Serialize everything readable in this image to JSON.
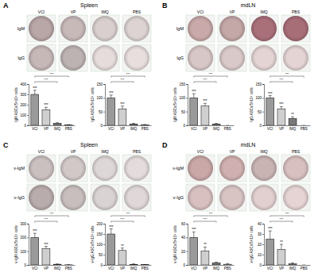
{
  "chart_data": [
    {
      "type": "bar",
      "panel": "A",
      "title": "Spleen",
      "wells": {
        "columns": [
          "VCI",
          "VP",
          "IMQ",
          "PBS"
        ],
        "rows": [
          "IgM",
          "IgG"
        ],
        "colors": [
          [
            "#b9a6a6",
            "#c8b9b9",
            "#d9cfcf",
            "#ddd3d3"
          ],
          [
            "#c7b8b8",
            "#bdb3b3",
            "#e6dcdc",
            "#e8dede"
          ]
        ]
      },
      "charts": [
        {
          "ylabel": "IgM ASCs/5×10⁵ cells",
          "categories": [
            "VCI",
            "VP",
            "IMQ",
            "PBS"
          ],
          "values": [
            300,
            150,
            20,
            5
          ],
          "errors": [
            40,
            25,
            5,
            2
          ],
          "ylim": [
            0,
            400
          ],
          "yticks": [
            0,
            100,
            200,
            300,
            400
          ],
          "colors": [
            "#9a9a9a",
            "#cfcfcf",
            "#7a7a7a",
            "#ffffff"
          ],
          "labels": [
            "***",
            "***",
            null,
            null
          ],
          "comparisons": [
            {
              "from": 0,
              "to": 2,
              "label": "***"
            },
            {
              "from": 0,
              "to": 3,
              "label": "***"
            }
          ]
        },
        {
          "ylabel": "IgG ASCs/5×10⁵ cells",
          "categories": [
            "VCI",
            "VP",
            "IMQ",
            "PBS"
          ],
          "values": [
            100,
            60,
            5,
            2
          ],
          "errors": [
            10,
            10,
            2,
            1
          ],
          "ylim": [
            0,
            150
          ],
          "yticks": [
            0,
            50,
            100,
            150
          ],
          "colors": [
            "#9a9a9a",
            "#cfcfcf",
            "#7a7a7a",
            "#ffffff"
          ],
          "labels": [
            "***",
            "***",
            null,
            null
          ],
          "comparisons": [
            {
              "from": 0,
              "to": 2,
              "label": "***"
            },
            {
              "from": 0,
              "to": 3,
              "label": "***"
            }
          ]
        }
      ]
    },
    {
      "type": "bar",
      "panel": "B",
      "title": "mdLN",
      "wells": {
        "columns": [
          "VCI",
          "VP",
          "IMQ",
          "PBS"
        ],
        "rows": [
          "IgM",
          "IgG"
        ],
        "colors": [
          [
            "#c9a9a9",
            "#c4a8a8",
            "#a9707a",
            "#a86e78"
          ],
          [
            "#d8c7c7",
            "#dac9c9",
            "#e4d4d4",
            "#e4d4d4"
          ]
        ]
      },
      "charts": [
        {
          "ylabel": "IgM ASCs/5×10⁵ cells",
          "categories": [
            "VCI",
            "VP",
            "IMQ",
            "PBS"
          ],
          "values": [
            100,
            70,
            5,
            0
          ],
          "errors": [
            15,
            10,
            2,
            0
          ],
          "ylim": [
            0,
            150
          ],
          "yticks": [
            0,
            50,
            100,
            150
          ],
          "colors": [
            "#9a9a9a",
            "#cfcfcf",
            "#7a7a7a",
            "#ffffff"
          ],
          "labels": [
            "***",
            "***",
            null,
            null
          ],
          "comparisons": [
            {
              "from": 0,
              "to": 2,
              "label": "***"
            },
            {
              "from": 0,
              "to": 3,
              "label": "***"
            }
          ]
        },
        {
          "ylabel": "IgG ASCs/5×10⁵ cells",
          "categories": [
            "VCI",
            "VP",
            "IMQ",
            "PBS"
          ],
          "values": [
            100,
            60,
            25,
            0
          ],
          "errors": [
            8,
            8,
            6,
            0
          ],
          "ylim": [
            0,
            150
          ],
          "yticks": [
            0,
            50,
            100,
            150
          ],
          "colors": [
            "#9a9a9a",
            "#cfcfcf",
            "#7a7a7a",
            "#ffffff"
          ],
          "labels": [
            "***",
            "***",
            "**",
            null
          ],
          "comparisons": [
            {
              "from": 0,
              "to": 2,
              "label": "***"
            },
            {
              "from": 0,
              "to": 3,
              "label": "***"
            }
          ]
        }
      ]
    },
    {
      "type": "bar",
      "panel": "C",
      "title": "Spleen",
      "wells": {
        "columns": [
          "VCI",
          "VP",
          "IMQ",
          "PBS"
        ],
        "rows": [
          "v-IgM",
          "v-IgG"
        ],
        "colors": [
          [
            "#cbc0c0",
            "#d2c8c8",
            "#ded7d7",
            "#e4dcdc"
          ],
          [
            "#b9acac",
            "#c8bebe",
            "#dad3d3",
            "#e0d8d8"
          ]
        ]
      },
      "charts": [
        {
          "ylabel": "v-IgM ASCs/5×10⁵ cells",
          "categories": [
            "VCI",
            "VP",
            "IMQ",
            "PBS"
          ],
          "values": [
            200,
            120,
            5,
            1
          ],
          "errors": [
            30,
            15,
            2,
            1
          ],
          "ylim": [
            0,
            300
          ],
          "yticks": [
            0,
            100,
            200,
            300
          ],
          "colors": [
            "#9a9a9a",
            "#cfcfcf",
            "#7a7a7a",
            "#ffffff"
          ],
          "labels": [
            "***",
            "***",
            null,
            null
          ],
          "comparisons": [
            {
              "from": 0,
              "to": 2,
              "label": "***"
            },
            {
              "from": 0,
              "to": 3,
              "label": "***"
            }
          ]
        },
        {
          "ylabel": "v-IgG ASCs/5×10⁵ cells",
          "categories": [
            "VCI",
            "VP",
            "IMQ",
            "PBS"
          ],
          "values": [
            150,
            70,
            3,
            1
          ],
          "errors": [
            25,
            12,
            2,
            1
          ],
          "ylim": [
            0,
            200
          ],
          "yticks": [
            0,
            50,
            100,
            150,
            200
          ],
          "colors": [
            "#9a9a9a",
            "#cfcfcf",
            "#7a7a7a",
            "#ffffff"
          ],
          "labels": [
            "***",
            "**",
            null,
            null
          ],
          "comparisons": [
            {
              "from": 0,
              "to": 2,
              "label": "***"
            },
            {
              "from": 0,
              "to": 3,
              "label": "***"
            }
          ]
        }
      ]
    },
    {
      "type": "bar",
      "panel": "D",
      "title": "mdLN",
      "wells": {
        "columns": [
          "VCI",
          "VP",
          "IMQ",
          "PBS"
        ],
        "rows": [
          "v-IgM",
          "v-IgG"
        ],
        "colors": [
          [
            "#caa8a8",
            "#d0b0b0",
            "#c9b3b3",
            "#d8c0c0"
          ],
          [
            "#d8c0c0",
            "#d9c4c4",
            "#e2d0d0",
            "#e6d4d4"
          ]
        ]
      },
      "charts": [
        {
          "ylabel": "v-IgM ASCs/5×10⁵ cells",
          "categories": [
            "VCI",
            "VP",
            "IMQ",
            "PBS"
          ],
          "values": [
            40,
            20,
            3,
            1
          ],
          "errors": [
            8,
            6,
            1,
            1
          ],
          "ylim": [
            0,
            60
          ],
          "yticks": [
            0,
            20,
            40,
            60
          ],
          "colors": [
            "#9a9a9a",
            "#cfcfcf",
            "#7a7a7a",
            "#ffffff"
          ],
          "labels": [
            "***",
            "**",
            null,
            null
          ],
          "comparisons": [
            {
              "from": 0,
              "to": 2,
              "label": "***"
            },
            {
              "from": 0,
              "to": 3,
              "label": "***"
            }
          ]
        },
        {
          "ylabel": "v-IgG ASCs/5×10⁵ cells",
          "categories": [
            "VCI",
            "VP",
            "IMQ",
            "PBS"
          ],
          "values": [
            25,
            15,
            1,
            0
          ],
          "errors": [
            8,
            5,
            1,
            0
          ],
          "ylim": [
            0,
            40
          ],
          "yticks": [
            0,
            10,
            20,
            30,
            40
          ],
          "colors": [
            "#9a9a9a",
            "#cfcfcf",
            "#7a7a7a",
            "#ffffff"
          ],
          "labels": [
            "***",
            "**",
            null,
            null
          ],
          "comparisons": [
            {
              "from": 0,
              "to": 2,
              "label": "***"
            },
            {
              "from": 0,
              "to": 3,
              "label": "***"
            }
          ]
        }
      ]
    }
  ]
}
